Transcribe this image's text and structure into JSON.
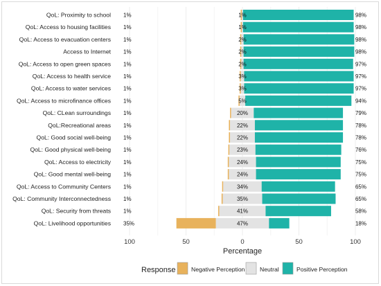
{
  "chart_data": {
    "type": "bar",
    "orientation": "horizontal",
    "stacked": "diverging",
    "categories": [
      "QoL: Proximity to school",
      "QoL: Access to housing facilities",
      "QoL: Access to evacuation centers",
      "Access to Internet",
      "QoL: Access to open green spaces",
      "QoL: Access to health service",
      "QoL: Access to water services",
      "QoL: Access to microfinance offices",
      "QoL: CLean surroundings",
      "QoL:Recreational areas",
      "QoL: Good social well-being",
      "QoL: Good physical well-being",
      "QoL: Access to electricity",
      "QoL: Good mental well-being",
      "QoL: Access to Community Centers",
      "QoL: Community Interconnectedness",
      "QoL: Security from threats",
      "QoL: Livelihood opportunities"
    ],
    "series": [
      {
        "name": "Negative Perception",
        "color": "#e8b25c",
        "values": [
          1,
          1,
          1,
          1,
          1,
          1,
          1,
          1,
          1,
          1,
          1,
          1,
          1,
          1,
          1,
          1,
          1,
          35
        ],
        "labels": [
          "1%",
          "1%",
          "1%",
          "1%",
          "1%",
          "1%",
          "1%",
          "1%",
          "1%",
          "1%",
          "1%",
          "1%",
          "1%",
          "1%",
          "1%",
          "1%",
          "1%",
          "35%"
        ]
      },
      {
        "name": "Neutral",
        "color": "#e3e3e3",
        "values": [
          1,
          1,
          2,
          2,
          2,
          3,
          3,
          5,
          20,
          22,
          22,
          23,
          24,
          24,
          34,
          35,
          41,
          47
        ],
        "labels": [
          "1%",
          "1%",
          "2%",
          "2%",
          "2%",
          "3%",
          "3%",
          "5%",
          "20%",
          "22%",
          "22%",
          "23%",
          "24%",
          "24%",
          "34%",
          "35%",
          "41%",
          "47%"
        ]
      },
      {
        "name": "Positive Perception",
        "color": "#1fb3a8",
        "values": [
          98,
          98,
          98,
          98,
          97,
          97,
          97,
          94,
          79,
          78,
          78,
          76,
          75,
          75,
          65,
          65,
          58,
          18
        ],
        "labels": [
          "98%",
          "98%",
          "98%",
          "98%",
          "97%",
          "97%",
          "97%",
          "94%",
          "79%",
          "78%",
          "78%",
          "76%",
          "75%",
          "75%",
          "65%",
          "65%",
          "58%",
          "18%"
        ]
      }
    ],
    "xticks": [
      "100",
      "50",
      "0",
      "50",
      "100"
    ],
    "xlim": [
      -100,
      100
    ],
    "xlabel": "Percentage",
    "legend": {
      "title": "Response",
      "position": "bottom"
    },
    "grid": true
  }
}
